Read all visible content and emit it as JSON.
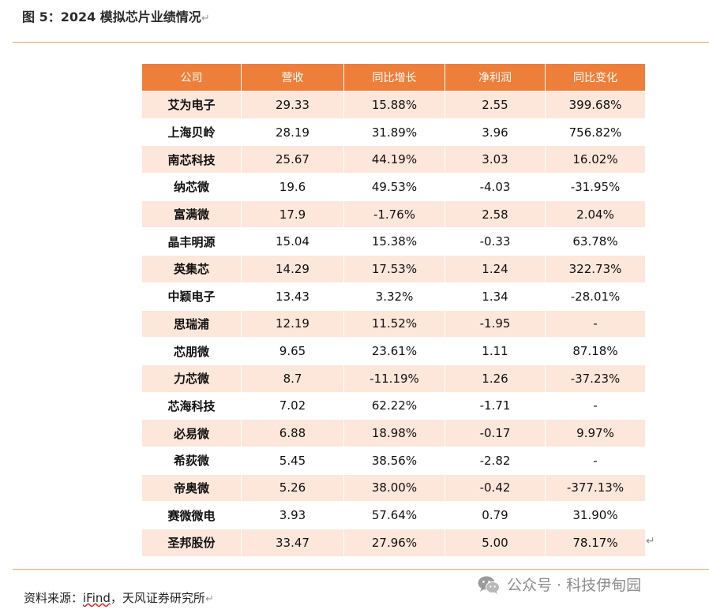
{
  "figure": {
    "title": "图 5：2024 模拟芯片业绩情况",
    "return_mark": "↵"
  },
  "table": {
    "headers": [
      "公司",
      "营收",
      "同比增长",
      "净利润",
      "同比变化"
    ],
    "rows": [
      [
        "艾为电子",
        "29.33",
        "15.88%",
        "2.55",
        "399.68%"
      ],
      [
        "上海贝岭",
        "28.19",
        "31.89%",
        "3.96",
        "756.82%"
      ],
      [
        "南芯科技",
        "25.67",
        "44.19%",
        "3.03",
        "16.02%"
      ],
      [
        "纳芯微",
        "19.6",
        "49.53%",
        "-4.03",
        "-31.95%"
      ],
      [
        "富满微",
        "17.9",
        "-1.76%",
        "2.58",
        "2.04%"
      ],
      [
        "晶丰明源",
        "15.04",
        "15.38%",
        "-0.33",
        "63.78%"
      ],
      [
        "英集芯",
        "14.29",
        "17.53%",
        "1.24",
        "322.73%"
      ],
      [
        "中颖电子",
        "13.43",
        "3.32%",
        "1.34",
        "-28.01%"
      ],
      [
        "思瑞浦",
        "12.19",
        "11.52%",
        "-1.95",
        "-"
      ],
      [
        "芯朋微",
        "9.65",
        "23.61%",
        "1.11",
        "87.18%"
      ],
      [
        "力芯微",
        "8.7",
        "-11.19%",
        "1.26",
        "-37.23%"
      ],
      [
        "芯海科技",
        "7.02",
        "62.22%",
        "-1.71",
        "-"
      ],
      [
        "必易微",
        "6.88",
        "18.98%",
        "-0.17",
        "9.97%"
      ],
      [
        "希荻微",
        "5.45",
        "38.56%",
        "-2.82",
        "-"
      ],
      [
        "帝奥微",
        "5.26",
        "38.00%",
        "-0.42",
        "-377.13%"
      ],
      [
        "赛微微电",
        "3.93",
        "57.64%",
        "0.79",
        "31.90%"
      ],
      [
        "圣邦股份",
        "33.47",
        "27.96%",
        "5.00",
        "78.17%"
      ]
    ]
  },
  "source": {
    "prefix": "资料来源：",
    "ifind": "iFind",
    "suffix": "，天风证券研究所"
  },
  "watermark": {
    "text": "公众号 · 科技伊甸园",
    "icon": "wechat-icon"
  },
  "colors": {
    "header_bg": "#ee7f3a",
    "row_tint": "#fde6da",
    "rule": "#e8a36d"
  }
}
